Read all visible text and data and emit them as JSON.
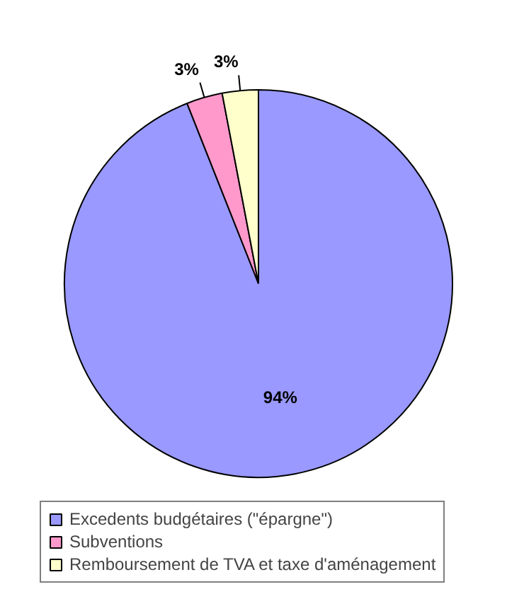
{
  "chart_data": {
    "type": "pie",
    "categories": [
      "Excedents budgétaires (\"épargne\")",
      "Subventions",
      "Remboursement de TVA et taxe d'aménagement"
    ],
    "values": [
      94,
      3,
      3
    ],
    "colors": [
      "#9999ff",
      "#ff99cc",
      "#ffffcc"
    ],
    "value_labels": [
      "94%",
      "3%",
      "3%"
    ],
    "legend": "bottom"
  }
}
